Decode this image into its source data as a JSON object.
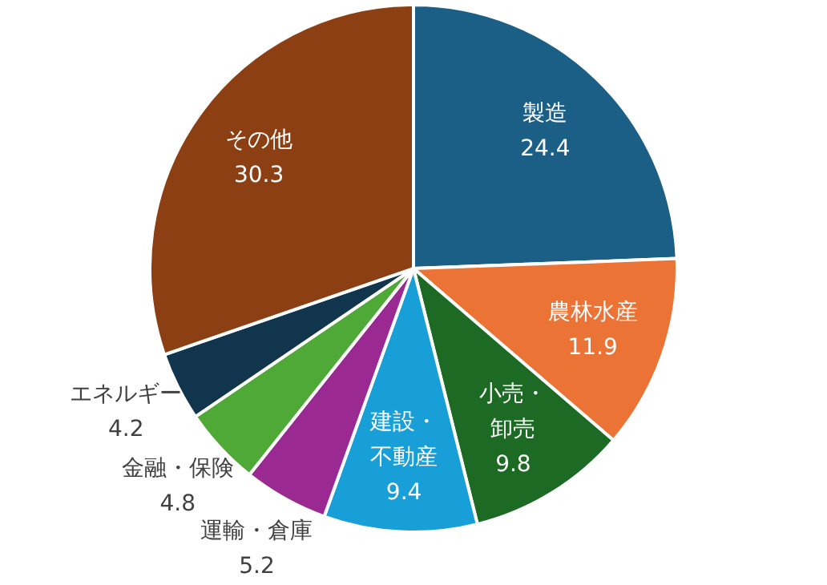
{
  "chart_data": {
    "type": "pie",
    "categories": [
      "製造",
      "農林水産",
      "小売・卸売",
      "建設・不動産",
      "運輸・倉庫",
      "金融・保険",
      "エネルギー",
      "その他"
    ],
    "values": [
      24.4,
      11.9,
      9.8,
      9.4,
      5.2,
      4.8,
      4.2,
      30.3
    ],
    "colors": [
      "#1b5e86",
      "#ec7336",
      "#1d6a24",
      "#189fd8",
      "#9a2a92",
      "#4ea936",
      "#12354e",
      "#8c3f12"
    ],
    "data_labels": true,
    "legend": false
  }
}
